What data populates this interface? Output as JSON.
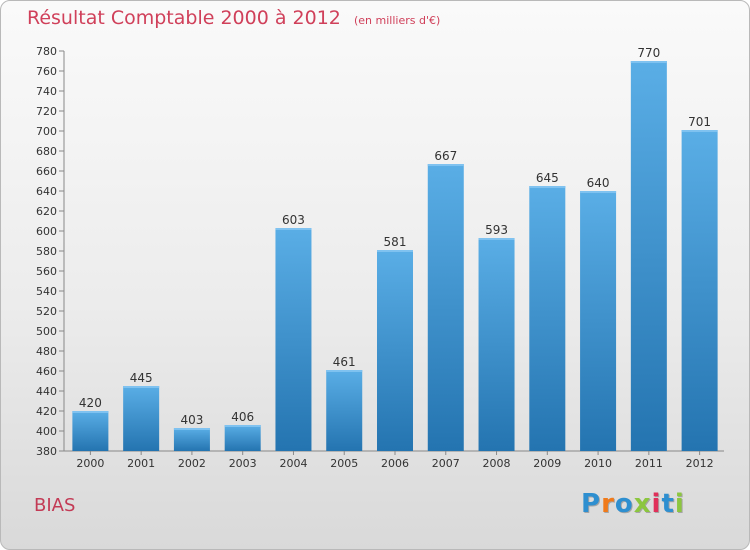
{
  "header": {
    "title": "Résultat Comptable 2000 à 2012",
    "subtitle": "(en milliers d'€)"
  },
  "footer": {
    "commune": "BIAS",
    "logo_text": "Proxiti"
  },
  "colors": {
    "title": "#d0405a",
    "bar_top": "#5aaee6",
    "bar_bottom": "#2474b0",
    "logo": [
      "#2e8fd0",
      "#f07a1a",
      "#2e8fd0",
      "#8cc63f",
      "#e0305a",
      "#2e8fd0",
      "#8cc63f"
    ]
  },
  "chart_data": {
    "type": "bar",
    "title": "Résultat Comptable 2000 à 2012",
    "xlabel": "",
    "ylabel": "",
    "categories": [
      "2000",
      "2001",
      "2002",
      "2003",
      "2004",
      "2005",
      "2006",
      "2007",
      "2008",
      "2009",
      "2010",
      "2011",
      "2012"
    ],
    "values": [
      420,
      445,
      403,
      406,
      603,
      461,
      581,
      667,
      593,
      645,
      640,
      770,
      701
    ],
    "ylim": [
      380,
      780
    ],
    "ytick_step": 20,
    "grid": false
  }
}
